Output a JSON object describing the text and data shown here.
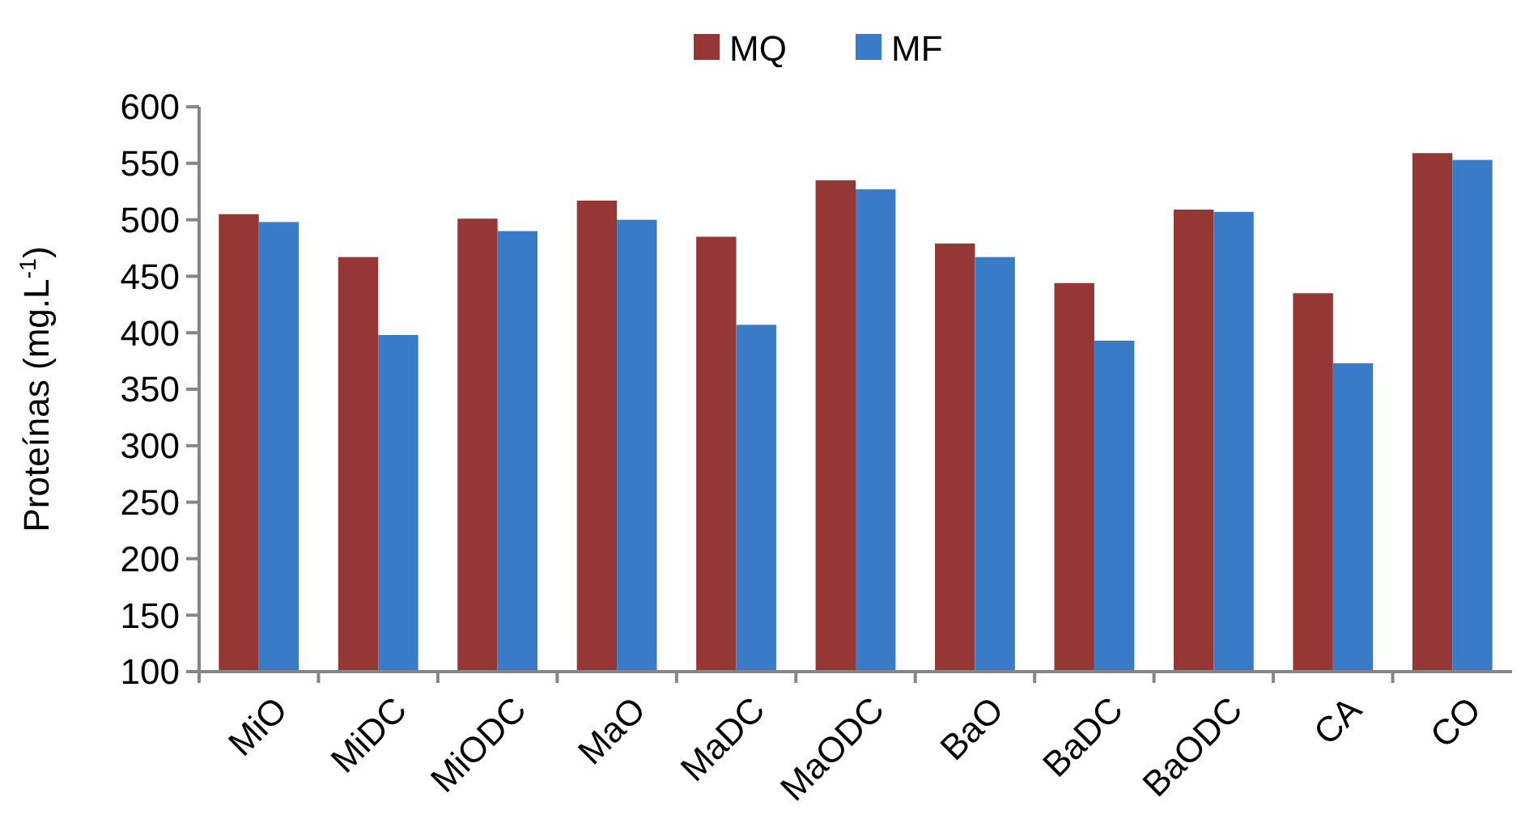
{
  "chart_data": {
    "type": "bar",
    "ylabel": "Proteínas (mg.L$^{-1}$)",
    "categories": [
      "MiO",
      "MiDC",
      "MiODC",
      "MaO",
      "MaDC",
      "MaODC",
      "BaO",
      "BaDC",
      "BaODC",
      "CA",
      "CO"
    ],
    "series": [
      {
        "name": "MQ",
        "color": "#953735",
        "values": [
          505,
          467,
          501,
          517,
          485,
          535,
          479,
          444,
          509,
          435,
          559
        ]
      },
      {
        "name": "MF",
        "color": "#3a7bc8",
        "values": [
          498,
          398,
          490,
          500,
          407,
          527,
          467,
          393,
          507,
          373,
          553
        ]
      }
    ],
    "ylim": [
      100,
      600
    ],
    "yticks": [
      100,
      150,
      200,
      250,
      300,
      350,
      400,
      450,
      500,
      550,
      600
    ],
    "grid": false,
    "legend": "top"
  }
}
